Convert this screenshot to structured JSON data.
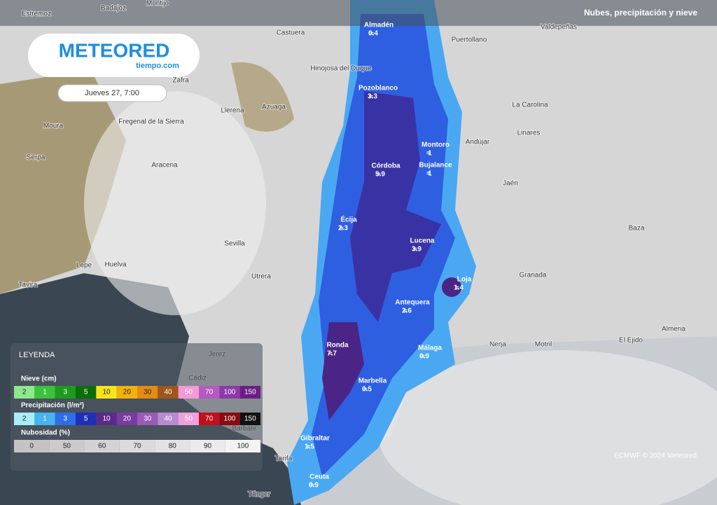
{
  "header": {
    "title": "Nubes, precipitación y nieve"
  },
  "logo": {
    "brand": "METEORED",
    "site": "tiempo.com"
  },
  "date": "Jueves 27, 7:00",
  "places": [
    "Estremoz",
    "Badajoz",
    "Montijo",
    "Castuera",
    "Puertollano",
    "Valdepeñas",
    "Zafra",
    "Hinojosa del Duque",
    "Llerena",
    "Azuaga",
    "Moura",
    "Fregenal de la Sierra",
    "La Carolina",
    "Linares",
    "Andújar",
    "Serpa",
    "Aracena",
    "Jaén",
    "Sevilla",
    "Baza",
    "Lepe",
    "Huelva",
    "Tavira",
    "Utrera",
    "Granada",
    "Nerja",
    "Motril",
    "El Ejido",
    "Almeria",
    "Jerez",
    "Cádiz",
    "Barbate",
    "Tarifa",
    "Tánger"
  ],
  "stations": [
    {
      "name": "Almadén",
      "precip": 0.4
    },
    {
      "name": "Pozoblanco",
      "precip": 3.3
    },
    {
      "name": "Córdoba",
      "precip": 5.9
    },
    {
      "name": "Montoro",
      "precip": 1
    },
    {
      "name": "Bujalance",
      "precip": 1
    },
    {
      "name": "Écija",
      "precip": 2.3
    },
    {
      "name": "Lucena",
      "precip": 3.9
    },
    {
      "name": "Loja",
      "precip": 1.4
    },
    {
      "name": "Antequera",
      "precip": 2.6
    },
    {
      "name": "Ronda",
      "precip": 7.7
    },
    {
      "name": "Málaga",
      "precip": 0.9
    },
    {
      "name": "Marbella",
      "precip": 0.5
    },
    {
      "name": "Gibraltar",
      "precip": 1.5
    },
    {
      "name": "Ceuta",
      "precip": 0.9
    }
  ],
  "legend": {
    "title": "LEYENDA",
    "scales": [
      {
        "title": "Nieve (cm)",
        "labels": [
          2,
          1,
          3,
          5,
          10,
          20,
          30,
          40,
          50,
          70,
          100,
          150
        ],
        "colors": [
          "#8ee88e",
          "#3cc23c",
          "#1e9a1e",
          "#0b6e0b",
          "#f5e51a",
          "#f1b20c",
          "#e58a12",
          "#a0561a",
          "#f39ad8",
          "#b45ac0",
          "#8c3aa8",
          "#6a1e86"
        ]
      },
      {
        "title": "Precipitación (l/m²)",
        "labels": [
          2,
          1,
          3,
          5,
          10,
          20,
          30,
          40,
          50,
          70,
          100,
          150
        ],
        "colors": [
          "#a8eef8",
          "#46b4f0",
          "#2d6fe6",
          "#1f2fb8",
          "#5a2a8a",
          "#7a3aa0",
          "#9a5ab8",
          "#b98ad2",
          "#f0a0e0",
          "#c0101a",
          "#8a0a12",
          "#111111"
        ]
      },
      {
        "title": "Nubosidad (%)",
        "labels": [
          0,
          50,
          60,
          70,
          80,
          90,
          100
        ],
        "colors": [
          "#c4c4c4",
          "#cbcbcb",
          "#d3d3d3",
          "#dbdbdb",
          "#e3e3e3",
          "#ebebeb",
          "#f3f3f3"
        ]
      }
    ]
  },
  "credit": "ECMWF © 2024 Meteored"
}
